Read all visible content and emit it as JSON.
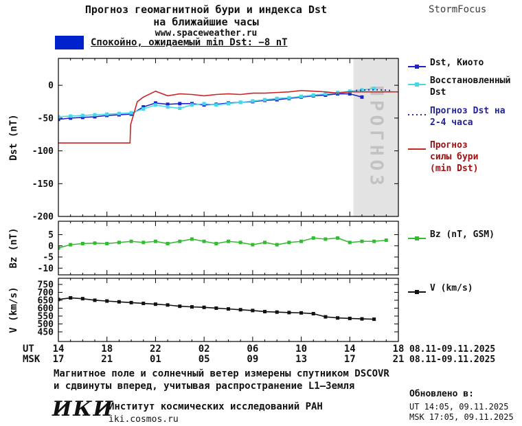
{
  "header": {
    "title_line1": "Прогноз геомагнитной бури и индекса Dst",
    "title_line2": "на ближайшие часы",
    "website": "www.spaceweather.ru",
    "brand": "StormFocus",
    "status_label": "Спокойно, ожидаемый min Dst: −8 nT",
    "status_color": "#0022cc"
  },
  "axis": {
    "ut_label": "UT",
    "msk_label": "MSK",
    "tick_hours": [
      0,
      4,
      8,
      12,
      16,
      20,
      24,
      28
    ],
    "ut_ticks": [
      "14",
      "18",
      "22",
      "02",
      "06",
      "10",
      "14",
      "18"
    ],
    "msk_ticks": [
      "17",
      "21",
      "01",
      "05",
      "09",
      "13",
      "17",
      "21"
    ],
    "date_range": "08.11-09.11.2025"
  },
  "chart_data": [
    {
      "type": "line",
      "ylabel": "Dst (nT)",
      "ylim": [
        -200,
        41
      ],
      "yticks": [
        0,
        -50,
        -100,
        -150,
        -200
      ],
      "xlim": [
        0,
        28
      ],
      "forecast_region": {
        "x_start": 24.3,
        "x_end": 28,
        "label": "ПРОГНОЗ"
      },
      "series": [
        {
          "name": "Dst, Киото",
          "color": "#2222cc",
          "marker": "square",
          "values": [
            -52,
            -50,
            -49,
            -48,
            -46,
            -45,
            -44,
            -33,
            -27,
            -29,
            -28,
            -28,
            -30,
            -29,
            -27,
            -26,
            -25,
            -23,
            -22,
            -20,
            -18,
            -16,
            -15,
            -13,
            -13,
            -18
          ]
        },
        {
          "name": "Восстановленный Dst",
          "color": "#44d8e8",
          "marker": "square",
          "values": [
            -48,
            -47,
            -46,
            -45,
            -44,
            -43,
            -42,
            -36,
            -30,
            -33,
            -35,
            -30,
            -28,
            -30,
            -28,
            -26,
            -24,
            -22,
            -20,
            -19,
            -17,
            -15,
            -13,
            -11,
            -9,
            -7,
            -5
          ]
        },
        {
          "name": "Прогноз Dst на 2-4 часа",
          "color": "#2a2a9a",
          "style": "dotted",
          "x": [
            24.5,
            25.5,
            26.5,
            27.5
          ],
          "values": [
            -8,
            -7,
            -7,
            -8
          ]
        },
        {
          "name": "Прогноз силы бури (min Dst)",
          "color": "#cc2222",
          "x": [
            0,
            5.9,
            5.95,
            6.5,
            7,
            8,
            9,
            10,
            11,
            12,
            13,
            14,
            15,
            16,
            17,
            18,
            19,
            20,
            21,
            22,
            23,
            24,
            25,
            26,
            27,
            28
          ],
          "values": [
            -88,
            -88,
            -60,
            -25,
            -18,
            -9,
            -16,
            -13,
            -14,
            -16,
            -14,
            -13,
            -14,
            -12,
            -12,
            -11,
            -10,
            -8,
            -9,
            -10,
            -12,
            -10,
            -10,
            -10,
            -10,
            -10
          ]
        }
      ]
    },
    {
      "type": "line",
      "ylabel": "Bz (nT)",
      "ylim": [
        -13,
        11
      ],
      "yticks": [
        5,
        0,
        -5,
        -10
      ],
      "xlim": [
        0,
        28
      ],
      "series": [
        {
          "name": "Bz (nT, GSM)",
          "color": "#33bb33",
          "marker": "square",
          "values": [
            -1,
            0.5,
            1,
            1.2,
            1,
            1.5,
            2,
            1.5,
            2,
            1,
            2,
            3,
            2,
            1,
            2,
            1.5,
            0.5,
            1.5,
            0.5,
            1.5,
            2,
            3.5,
            3,
            3.5,
            1.5,
            2,
            2,
            2.5
          ]
        }
      ]
    },
    {
      "type": "line",
      "ylabel": "V (km/s)",
      "ylim": [
        389,
        789
      ],
      "yticks": [
        750,
        700,
        650,
        600,
        550,
        500,
        450
      ],
      "xlim": [
        0,
        28
      ],
      "series": [
        {
          "name": "V (km/s)",
          "color": "#111111",
          "marker": "square",
          "values": [
            655,
            665,
            660,
            650,
            645,
            640,
            635,
            630,
            625,
            620,
            612,
            608,
            605,
            600,
            595,
            590,
            585,
            578,
            575,
            572,
            570,
            565,
            545,
            538,
            535,
            532,
            530
          ]
        }
      ]
    }
  ],
  "footer": {
    "note_line1": "Магнитное поле и солнечный ветер измерены спутником DSCOVR",
    "note_line2": "и сдвинуты вперед, учитывая распространение L1—Земля",
    "logo": "ИКИ",
    "institute": "Институт космических исследований РАН",
    "site": "iki.cosmos.ru",
    "updated_label": "Обновлено в:",
    "updated_ut": "UT  14:05, 09.11.2025",
    "updated_msk": "MSK 17:05, 09.11.2025"
  }
}
